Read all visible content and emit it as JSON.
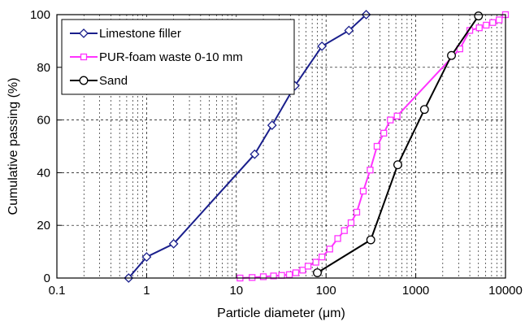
{
  "chart_data": {
    "type": "line",
    "xlabel": "Particle diameter (μm)",
    "ylabel": "Cumulative passing (%)",
    "xscale": "log",
    "xlim": [
      0.1,
      10000
    ],
    "ylim": [
      0,
      100
    ],
    "x_ticks": [
      {
        "value": 0.1,
        "label": "0.1"
      },
      {
        "value": 1,
        "label": "1"
      },
      {
        "value": 10,
        "label": "10"
      },
      {
        "value": 100,
        "label": "100"
      },
      {
        "value": 1000,
        "label": "1000"
      },
      {
        "value": 10000,
        "label": "10000"
      }
    ],
    "y_ticks": [
      {
        "value": 0,
        "label": "0"
      },
      {
        "value": 20,
        "label": "20"
      },
      {
        "value": 40,
        "label": "40"
      },
      {
        "value": 60,
        "label": "60"
      },
      {
        "value": 80,
        "label": "80"
      },
      {
        "value": 100,
        "label": "100"
      }
    ],
    "grid": {
      "major_y": true,
      "major_x": true,
      "minor_x": true,
      "style": "dotted"
    },
    "legend_position": "top-left",
    "series": [
      {
        "name": "Limestone filler",
        "color": "#1a1f8c",
        "marker": "diamond-open",
        "x": [
          0.63,
          1,
          2,
          16,
          25,
          45,
          90,
          180,
          280
        ],
        "y": [
          0,
          8,
          13,
          47,
          58,
          73,
          88,
          94,
          100
        ]
      },
      {
        "name": "PUR-foam waste 0-10 mm",
        "color": "#ff33ff",
        "marker": "square-open",
        "x": [
          11,
          15,
          20,
          26,
          32,
          39,
          46,
          55,
          63,
          77,
          90,
          110,
          135,
          160,
          190,
          220,
          260,
          310,
          370,
          440,
          520,
          620,
          3100,
          4000,
          5100,
          6100,
          7200,
          8500,
          10000
        ],
        "y": [
          0,
          0.2,
          0.5,
          0.8,
          1,
          1.3,
          2,
          3,
          4.5,
          6,
          8,
          11,
          15,
          18,
          21,
          25,
          33,
          41,
          50,
          55,
          60,
          61.5,
          87,
          94,
          95,
          96,
          97,
          98,
          100
        ]
      },
      {
        "name": "Sand",
        "color": "#000000",
        "marker": "circle-open",
        "x": [
          80,
          315,
          630,
          1250,
          2500,
          5000
        ],
        "y": [
          2,
          14.5,
          43,
          64,
          84.5,
          99.5
        ]
      }
    ]
  }
}
